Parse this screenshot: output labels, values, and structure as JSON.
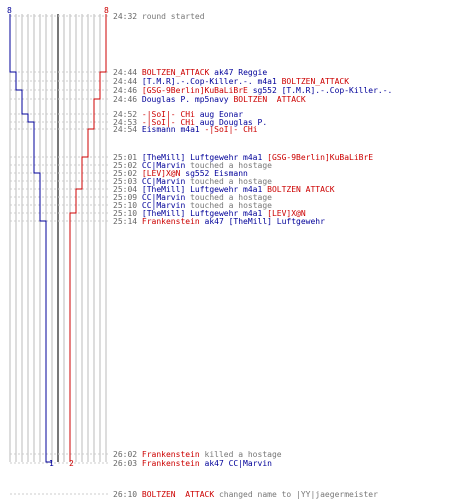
{
  "colors": {
    "red": "#cc0000",
    "blue": "#000099",
    "gray": "#777777",
    "time": "#666666"
  },
  "team_counts": {
    "blue_start": "8",
    "red_start": "8",
    "blue_end": "1",
    "red_end": "2"
  },
  "events": [
    {
      "time": "24:32",
      "parts": [
        {
          "t": "round started",
          "c": "gray"
        }
      ]
    },
    {
      "time": "24:44",
      "parts": [
        {
          "t": "BOLTZEN_ATTACK",
          "c": "red"
        },
        {
          "t": " ak47 ",
          "c": "blue"
        },
        {
          "t": "Reggie",
          "c": "blue"
        }
      ]
    },
    {
      "time": "24:44",
      "parts": [
        {
          "t": "[T.M.R].-.Cop-Killer.-.",
          "c": "blue"
        },
        {
          "t": " m4a1 ",
          "c": "blue"
        },
        {
          "t": "BOLTZEN_ATTACK",
          "c": "red"
        }
      ]
    },
    {
      "time": "24:46",
      "parts": [
        {
          "t": "[GSG-9Berlin]KuBaLiBrE",
          "c": "red"
        },
        {
          "t": " sg552 ",
          "c": "blue"
        },
        {
          "t": "[T.M.R].-.Cop-Killer.-.",
          "c": "blue"
        }
      ]
    },
    {
      "time": "24:46",
      "parts": [
        {
          "t": "Douglas P.",
          "c": "blue"
        },
        {
          "t": " mp5navy ",
          "c": "blue"
        },
        {
          "t": "BOLTZEN  ATTACK",
          "c": "red"
        }
      ]
    },
    {
      "time": "24:52",
      "parts": [
        {
          "t": "-|SoI|- CHi",
          "c": "red"
        },
        {
          "t": " aug ",
          "c": "blue"
        },
        {
          "t": "Eonar",
          "c": "blue"
        }
      ]
    },
    {
      "time": "24:53",
      "parts": [
        {
          "t": "-|SoI|- CHi",
          "c": "red"
        },
        {
          "t": " aug ",
          "c": "blue"
        },
        {
          "t": "Douglas P.",
          "c": "blue"
        }
      ]
    },
    {
      "time": "24:54",
      "parts": [
        {
          "t": "Eismann",
          "c": "blue"
        },
        {
          "t": " m4a1 ",
          "c": "blue"
        },
        {
          "t": "-|SoI|- CHi",
          "c": "red"
        }
      ]
    },
    {
      "time": "25:01",
      "parts": [
        {
          "t": "[TheMill] Luftgewehr",
          "c": "blue"
        },
        {
          "t": " m4a1 ",
          "c": "blue"
        },
        {
          "t": "[GSG-9Berlin]KuBaLiBrE",
          "c": "red"
        }
      ]
    },
    {
      "time": "25:02",
      "parts": [
        {
          "t": "CC|Marvin",
          "c": "blue"
        },
        {
          "t": " touched a hostage",
          "c": "gray"
        }
      ]
    },
    {
      "time": "25:02",
      "parts": [
        {
          "t": "[LEV]X@N",
          "c": "red"
        },
        {
          "t": " sg552 ",
          "c": "blue"
        },
        {
          "t": "Eismann",
          "c": "blue"
        }
      ]
    },
    {
      "time": "25:03",
      "parts": [
        {
          "t": "CC|Marvin",
          "c": "blue"
        },
        {
          "t": " touched a hostage",
          "c": "gray"
        }
      ]
    },
    {
      "time": "25:04",
      "parts": [
        {
          "t": "[TheMill] Luftgewehr",
          "c": "blue"
        },
        {
          "t": " m4a1 ",
          "c": "blue"
        },
        {
          "t": "BOLTZEN ATTACK",
          "c": "red"
        }
      ]
    },
    {
      "time": "25:09",
      "parts": [
        {
          "t": "CC|Marvin",
          "c": "blue"
        },
        {
          "t": " touched a hostage",
          "c": "gray"
        }
      ]
    },
    {
      "time": "25:10",
      "parts": [
        {
          "t": "CC|Marvin",
          "c": "blue"
        },
        {
          "t": " touched a hostage",
          "c": "gray"
        }
      ]
    },
    {
      "time": "25:10",
      "parts": [
        {
          "t": "[TheMill] Luftgewehr",
          "c": "blue"
        },
        {
          "t": " m4a1 ",
          "c": "blue"
        },
        {
          "t": "[LEV]X@N",
          "c": "red"
        }
      ]
    },
    {
      "time": "25:14",
      "parts": [
        {
          "t": "Frankenstein",
          "c": "red"
        },
        {
          "t": " ak47 ",
          "c": "blue"
        },
        {
          "t": "[TheMill] Luftgewehr",
          "c": "blue"
        }
      ]
    },
    {
      "time": "26:02",
      "parts": [
        {
          "t": "Frankenstein",
          "c": "red"
        },
        {
          "t": " killed a hostage",
          "c": "gray"
        }
      ]
    },
    {
      "time": "26:03",
      "parts": [
        {
          "t": "Frankenstein",
          "c": "red"
        },
        {
          "t": " ak47 ",
          "c": "blue"
        },
        {
          "t": "CC|Marvin",
          "c": "blue"
        }
      ]
    },
    {
      "time": "26:10",
      "parts": [
        {
          "t": "BOLTZEN  ATTACK",
          "c": "red"
        },
        {
          "t": " changed name to |YY|jaegermeister",
          "c": "gray"
        }
      ]
    }
  ]
}
